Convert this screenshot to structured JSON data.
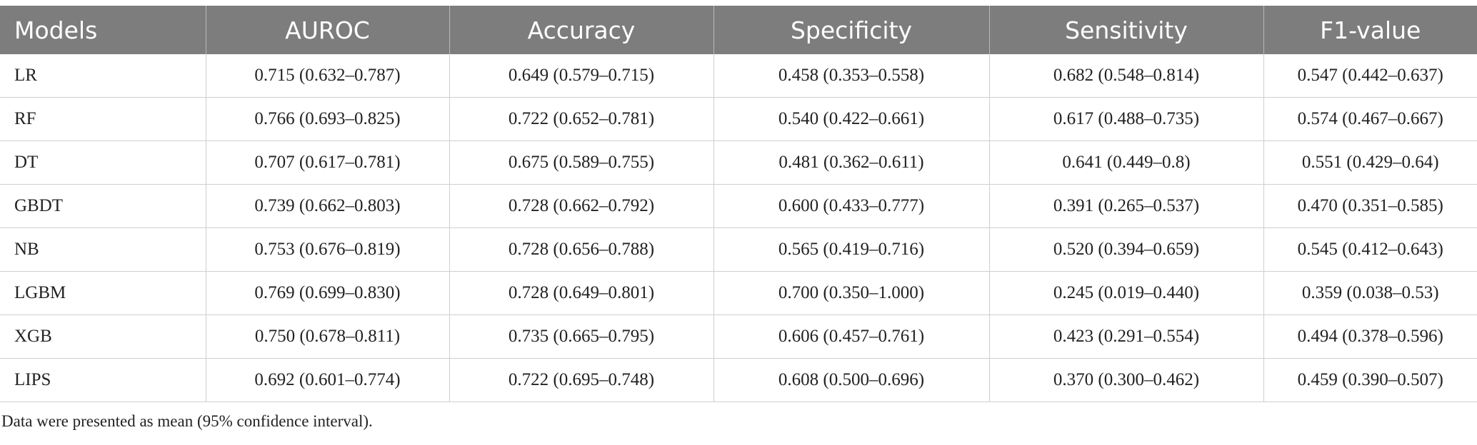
{
  "table": {
    "headers": [
      "Models",
      "AUROC",
      "Accuracy",
      "Specificity",
      "Sensitivity",
      "F1-value"
    ],
    "rows": [
      [
        "LR",
        "0.715 (0.632–0.787)",
        "0.649 (0.579–0.715)",
        "0.458 (0.353–0.558)",
        "0.682 (0.548–0.814)",
        "0.547 (0.442–0.637)"
      ],
      [
        "RF",
        "0.766 (0.693–0.825)",
        "0.722 (0.652–0.781)",
        "0.540 (0.422–0.661)",
        "0.617 (0.488–0.735)",
        "0.574 (0.467–0.667)"
      ],
      [
        "DT",
        "0.707 (0.617–0.781)",
        "0.675 (0.589–0.755)",
        "0.481 (0.362–0.611)",
        "0.641 (0.449–0.8)",
        "0.551 (0.429–0.64)"
      ],
      [
        "GBDT",
        "0.739 (0.662–0.803)",
        "0.728 (0.662–0.792)",
        "0.600 (0.433–0.777)",
        "0.391 (0.265–0.537)",
        "0.470 (0.351–0.585)"
      ],
      [
        "NB",
        "0.753 (0.676–0.819)",
        "0.728 (0.656–0.788)",
        "0.565 (0.419–0.716)",
        "0.520 (0.394–0.659)",
        "0.545 (0.412–0.643)"
      ],
      [
        "LGBM",
        "0.769 (0.699–0.830)",
        "0.728 (0.649–0.801)",
        "0.700 (0.350–1.000)",
        "0.245 (0.019–0.440)",
        "0.359 (0.038–0.53)"
      ],
      [
        "XGB",
        "0.750 (0.678–0.811)",
        "0.735 (0.665–0.795)",
        "0.606 (0.457–0.761)",
        "0.423 (0.291–0.554)",
        "0.494 (0.378–0.596)"
      ],
      [
        "LIPS",
        "0.692 (0.601–0.774)",
        "0.722 (0.695–0.748)",
        "0.608 (0.500–0.696)",
        "0.370 (0.300–0.462)",
        "0.459 (0.390–0.507)"
      ]
    ]
  },
  "footnote": "Data were presented as mean (95% confidence interval).",
  "colors": {
    "header_bg": "#7d7d7d",
    "header_text": "#ffffff",
    "grid": "#cfcfcf"
  }
}
